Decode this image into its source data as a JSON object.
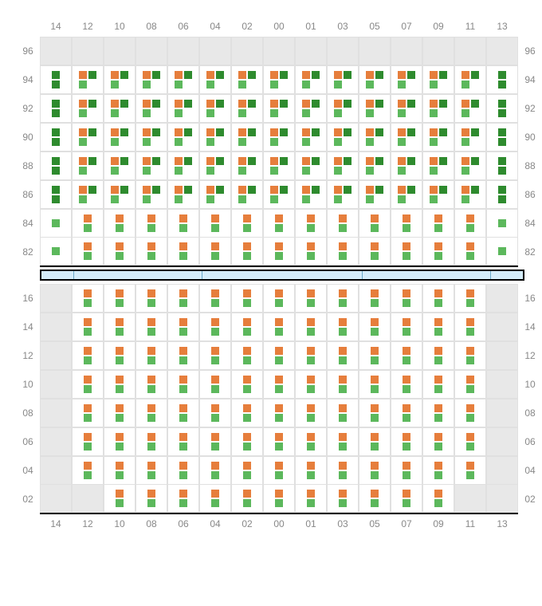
{
  "colors": {
    "orange": "#e67e3c",
    "green": "#5cb85c",
    "darkgreen": "#2e8b2e",
    "empty_cell": "#e8e8e8",
    "cell_bg": "#ffffff",
    "grid_border": "#e0e0e0",
    "divider_bg": "#d4ecf9",
    "divider_frame": "#000000",
    "label_color": "#888888",
    "label_fontsize": 12
  },
  "columns": [
    "14",
    "12",
    "10",
    "08",
    "06",
    "04",
    "02",
    "00",
    "01",
    "03",
    "05",
    "07",
    "09",
    "11",
    "13"
  ],
  "top_section": {
    "rows": [
      {
        "label": "96",
        "cells": [
          "E",
          "E",
          "E",
          "E",
          "E",
          "E",
          "E",
          "E",
          "E",
          "E",
          "E",
          "E",
          "E",
          "E",
          "E"
        ]
      },
      {
        "label": "94",
        "cells": [
          "SD",
          "T",
          "T",
          "T",
          "T",
          "T",
          "T",
          "T",
          "T",
          "T",
          "T",
          "T",
          "T",
          "T",
          "SD"
        ]
      },
      {
        "label": "92",
        "cells": [
          "SD",
          "T",
          "T",
          "T",
          "T",
          "T",
          "T",
          "T",
          "T",
          "T",
          "T",
          "T",
          "T",
          "T",
          "SD"
        ]
      },
      {
        "label": "90",
        "cells": [
          "SD",
          "T",
          "T",
          "T",
          "T",
          "T",
          "T",
          "T",
          "T",
          "T",
          "T",
          "T",
          "T",
          "T",
          "SD"
        ]
      },
      {
        "label": "88",
        "cells": [
          "SD",
          "T",
          "T",
          "T",
          "T",
          "T",
          "T",
          "T",
          "T",
          "T",
          "T",
          "T",
          "T",
          "T",
          "SD"
        ]
      },
      {
        "label": "86",
        "cells": [
          "SD",
          "T",
          "T",
          "T",
          "T",
          "T",
          "T",
          "T",
          "T",
          "T",
          "T",
          "T",
          "T",
          "T",
          "SD"
        ]
      },
      {
        "label": "84",
        "cells": [
          "SG",
          "V",
          "V",
          "V",
          "V",
          "V",
          "V",
          "V",
          "V",
          "V",
          "V",
          "V",
          "V",
          "V",
          "SG"
        ]
      },
      {
        "label": "82",
        "cells": [
          "SG",
          "V",
          "V",
          "V",
          "V",
          "V",
          "V",
          "V",
          "V",
          "V",
          "V",
          "V",
          "V",
          "V",
          "SG"
        ]
      }
    ]
  },
  "bottom_section": {
    "rows": [
      {
        "label": "16",
        "cells": [
          "E",
          "V",
          "V",
          "V",
          "V",
          "V",
          "V",
          "V",
          "V",
          "V",
          "V",
          "V",
          "V",
          "V",
          "E"
        ]
      },
      {
        "label": "14",
        "cells": [
          "E",
          "V",
          "V",
          "V",
          "V",
          "V",
          "V",
          "V",
          "V",
          "V",
          "V",
          "V",
          "V",
          "V",
          "E"
        ]
      },
      {
        "label": "12",
        "cells": [
          "E",
          "V",
          "V",
          "V",
          "V",
          "V",
          "V",
          "V",
          "V",
          "V",
          "V",
          "V",
          "V",
          "V",
          "E"
        ]
      },
      {
        "label": "10",
        "cells": [
          "E",
          "V",
          "V",
          "V",
          "V",
          "V",
          "V",
          "V",
          "V",
          "V",
          "V",
          "V",
          "V",
          "V",
          "E"
        ]
      },
      {
        "label": "08",
        "cells": [
          "E",
          "V",
          "V",
          "V",
          "V",
          "V",
          "V",
          "V",
          "V",
          "V",
          "V",
          "V",
          "V",
          "V",
          "E"
        ]
      },
      {
        "label": "06",
        "cells": [
          "E",
          "V",
          "V",
          "V",
          "V",
          "V",
          "V",
          "V",
          "V",
          "V",
          "V",
          "V",
          "V",
          "V",
          "E"
        ]
      },
      {
        "label": "04",
        "cells": [
          "E",
          "V",
          "V",
          "V",
          "V",
          "V",
          "V",
          "V",
          "V",
          "V",
          "V",
          "V",
          "V",
          "V",
          "E"
        ]
      },
      {
        "label": "02",
        "cells": [
          "E",
          "E",
          "V",
          "V",
          "V",
          "V",
          "V",
          "V",
          "V",
          "V",
          "V",
          "V",
          "V",
          "E",
          "E"
        ]
      }
    ]
  },
  "divider": {
    "segments": [
      1,
      4,
      5,
      4,
      1
    ]
  },
  "cell_types": {
    "E": "empty",
    "SD": "single-dark",
    "SG": "single-green",
    "T": "triple",
    "V": "vertical-pair"
  }
}
